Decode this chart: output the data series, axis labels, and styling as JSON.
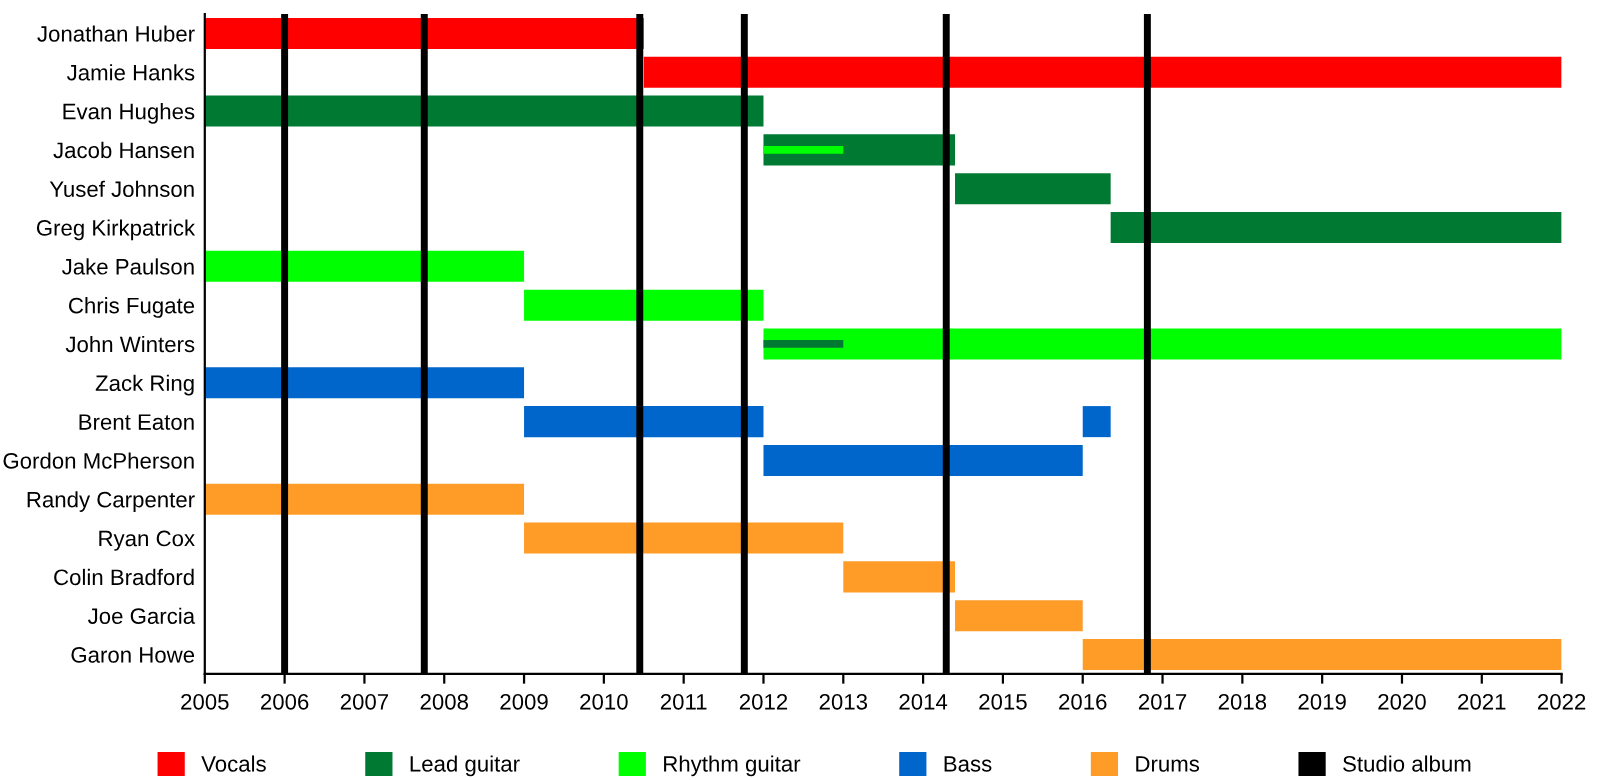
{
  "chart_data": {
    "type": "bar",
    "orientation": "horizontal",
    "categories": [
      "Jonathan Huber",
      "Jamie Hanks",
      "Evan Hughes",
      "Jacob Hansen",
      "Yusef Johnson",
      "Greg Kirkpatrick",
      "Jake Paulson",
      "Chris Fugate",
      "John Winters",
      "Zack Ring",
      "Brent Eaton",
      "Gordon McPherson",
      "Randy Carpenter",
      "Ryan Cox",
      "Colin Bradford",
      "Joe Garcia",
      "Garon Howe"
    ],
    "series": [
      {
        "name": "Vocals",
        "color": "#ff0000",
        "base": [
          2005,
          2010.5,
          null,
          null,
          null,
          null,
          null,
          null,
          null,
          null,
          null,
          null,
          null,
          null,
          null,
          null,
          null
        ],
        "values": [
          5.5,
          11.5,
          null,
          null,
          null,
          null,
          null,
          null,
          null,
          null,
          null,
          null,
          null,
          null,
          null,
          null,
          null
        ]
      },
      {
        "name": "Lead guitar",
        "color": "#007a33",
        "base": [
          null,
          null,
          2005,
          2012,
          2014.4,
          2016.35,
          null,
          null,
          null,
          null,
          null,
          null,
          null,
          null,
          null,
          null,
          null
        ],
        "values": [
          null,
          null,
          7,
          2.4,
          1.95,
          5.65,
          null,
          null,
          null,
          null,
          null,
          null,
          null,
          null,
          null,
          null,
          null
        ]
      },
      {
        "name": "Rhythm guitar",
        "color": "#00ff00",
        "base": [
          null,
          null,
          null,
          null,
          null,
          null,
          2005,
          2009,
          2012,
          null,
          null,
          null,
          null,
          null,
          null,
          null,
          null
        ],
        "values": [
          null,
          null,
          null,
          null,
          null,
          null,
          4,
          3,
          10,
          null,
          null,
          null,
          null,
          null,
          null,
          null,
          null
        ]
      },
      {
        "name": "Bass",
        "color": "#0066cc",
        "base": [
          null,
          null,
          null,
          null,
          null,
          null,
          null,
          null,
          null,
          2005,
          2009,
          2012,
          null,
          null,
          null,
          null,
          null
        ],
        "values": [
          null,
          null,
          null,
          null,
          null,
          null,
          null,
          null,
          null,
          4,
          3,
          4,
          null,
          null,
          null,
          null,
          null
        ]
      },
      {
        "name": "Drums",
        "color": "#ff9c27",
        "base": [
          null,
          null,
          null,
          null,
          null,
          null,
          null,
          null,
          null,
          null,
          null,
          null,
          2005,
          2009,
          2013,
          2014.4,
          2016
        ],
        "values": [
          null,
          null,
          null,
          null,
          null,
          null,
          null,
          null,
          null,
          null,
          null,
          null,
          4,
          4,
          1.4,
          1.6,
          6
        ]
      },
      {
        "color": "#0066cc",
        "base": [
          null,
          null,
          null,
          null,
          null,
          null,
          null,
          null,
          null,
          null,
          2016,
          null,
          null,
          null,
          null,
          null,
          null
        ],
        "values": [
          null,
          null,
          null,
          null,
          null,
          null,
          null,
          null,
          null,
          null,
          0.35,
          null,
          null,
          null,
          null,
          null,
          null
        ]
      },
      {
        "color": "#00ff00",
        "base": [
          null,
          null,
          null,
          2012,
          null,
          null,
          null,
          null,
          null,
          null,
          null,
          null,
          null,
          null,
          null,
          null,
          null
        ],
        "values": [
          null,
          null,
          null,
          1,
          null,
          null,
          null,
          null,
          null,
          null,
          null,
          null,
          null,
          null,
          null,
          null,
          null
        ]
      },
      {
        "color": "#007a33",
        "base": [
          null,
          null,
          null,
          null,
          null,
          null,
          null,
          null,
          2012,
          null,
          null,
          null,
          null,
          null,
          null,
          null,
          null
        ],
        "values": [
          null,
          null,
          null,
          null,
          null,
          null,
          null,
          null,
          1,
          null,
          null,
          null,
          null,
          null,
          null,
          null,
          null
        ]
      }
    ],
    "ref_lines": [
      {
        "axis": "x",
        "value": 2006,
        "label": "Studio album",
        "color": "#000000"
      },
      {
        "axis": "x",
        "value": 2007.75,
        "color": "#000000"
      },
      {
        "axis": "x",
        "value": 2010.45,
        "color": "#000000"
      },
      {
        "axis": "x",
        "value": 2011.76,
        "color": "#000000"
      },
      {
        "axis": "x",
        "value": 2014.29,
        "color": "#000000"
      },
      {
        "axis": "x",
        "value": 2016.81,
        "color": "#000000"
      }
    ],
    "xlim": [
      2005,
      2022
    ],
    "xticks": [
      2005,
      2006,
      2007,
      2008,
      2009,
      2010,
      2011,
      2012,
      2013,
      2014,
      2015,
      2016,
      2017,
      2018,
      2019,
      2020,
      2021,
      2022
    ],
    "grid": false,
    "legend": "bottom"
  }
}
